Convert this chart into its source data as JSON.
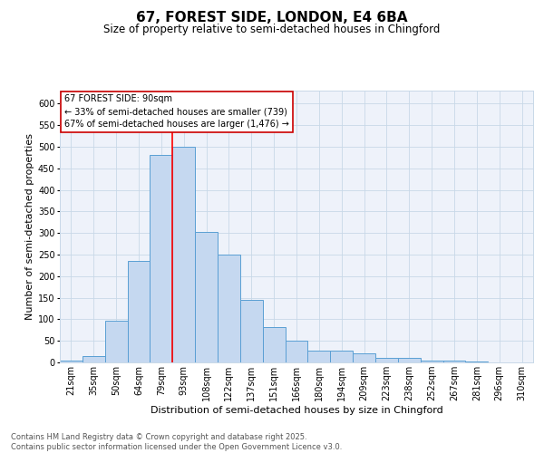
{
  "title": "67, FOREST SIDE, LONDON, E4 6BA",
  "subtitle": "Size of property relative to semi-detached houses in Chingford",
  "xlabel": "Distribution of semi-detached houses by size in Chingford",
  "ylabel": "Number of semi-detached properties",
  "categories": [
    "21sqm",
    "35sqm",
    "50sqm",
    "64sqm",
    "79sqm",
    "93sqm",
    "108sqm",
    "122sqm",
    "137sqm",
    "151sqm",
    "166sqm",
    "180sqm",
    "194sqm",
    "209sqm",
    "223sqm",
    "238sqm",
    "252sqm",
    "267sqm",
    "281sqm",
    "296sqm",
    "310sqm"
  ],
  "values": [
    5,
    15,
    97,
    235,
    480,
    500,
    302,
    250,
    145,
    82,
    50,
    27,
    27,
    20,
    10,
    10,
    5,
    5,
    3,
    1,
    1
  ],
  "bar_color": "#c5d8f0",
  "bar_edge_color": "#5a9fd4",
  "ref_line_index": 4.5,
  "annotation_line1": "67 FOREST SIDE: 90sqm",
  "annotation_line2": "← 33% of semi-detached houses are smaller (739)",
  "annotation_line3": "67% of semi-detached houses are larger (1,476) →",
  "box_edge_color": "#cc0000",
  "ylim": [
    0,
    630
  ],
  "yticks": [
    0,
    50,
    100,
    150,
    200,
    250,
    300,
    350,
    400,
    450,
    500,
    550,
    600
  ],
  "grid_color": "#c8d8e8",
  "bg_color": "#eef2fa",
  "footer_line1": "Contains HM Land Registry data © Crown copyright and database right 2025.",
  "footer_line2": "Contains public sector information licensed under the Open Government Licence v3.0.",
  "title_fontsize": 11,
  "subtitle_fontsize": 8.5,
  "axis_label_fontsize": 8,
  "tick_fontsize": 7,
  "annotation_fontsize": 7,
  "footer_fontsize": 6
}
